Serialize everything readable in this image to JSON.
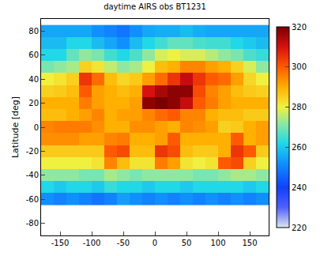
{
  "chart_data": {
    "type": "heatmap",
    "title": "daytime AIRS obs BT1231",
    "y_label": "Latitude [deg]",
    "x": [
      -170,
      -150,
      -130,
      -110,
      -90,
      -70,
      -50,
      -30,
      -10,
      10,
      30,
      50,
      70,
      90,
      110,
      130,
      150,
      170
    ],
    "y": [
      -60,
      -50,
      -40,
      -30,
      -20,
      -10,
      0,
      10,
      20,
      30,
      40,
      50,
      60,
      70,
      80
    ],
    "z": [
      [
        252,
        250,
        252,
        250,
        248,
        250,
        254,
        252,
        250,
        252,
        250,
        252,
        250,
        252,
        250,
        252,
        250,
        252
      ],
      [
        262,
        260,
        262,
        262,
        260,
        264,
        262,
        262,
        260,
        262,
        262,
        260,
        262,
        262,
        262,
        262,
        260,
        262
      ],
      [
        272,
        272,
        272,
        270,
        270,
        274,
        272,
        270,
        272,
        272,
        272,
        272,
        270,
        270,
        272,
        274,
        274,
        272
      ],
      [
        280,
        280,
        280,
        280,
        282,
        295,
        288,
        282,
        282,
        296,
        292,
        282,
        280,
        282,
        300,
        302,
        285,
        280
      ],
      [
        286,
        286,
        286,
        286,
        286,
        300,
        302,
        288,
        288,
        305,
        302,
        288,
        286,
        286,
        290,
        305,
        300,
        286
      ],
      [
        294,
        294,
        294,
        292,
        292,
        295,
        296,
        290,
        290,
        292,
        300,
        290,
        290,
        290,
        290,
        300,
        290,
        292
      ],
      [
        295,
        296,
        296,
        296,
        294,
        290,
        290,
        294,
        294,
        292,
        290,
        295,
        294,
        292,
        285,
        286,
        290,
        292
      ],
      [
        288,
        288,
        290,
        292,
        295,
        290,
        292,
        292,
        295,
        298,
        300,
        295,
        295,
        290,
        288,
        288,
        286,
        286
      ],
      [
        290,
        290,
        290,
        296,
        292,
        290,
        290,
        292,
        318,
        320,
        318,
        312,
        300,
        296,
        292,
        290,
        290,
        290
      ],
      [
        285,
        286,
        288,
        300,
        292,
        290,
        288,
        290,
        310,
        315,
        318,
        318,
        302,
        295,
        292,
        288,
        286,
        285
      ],
      [
        280,
        282,
        285,
        305,
        298,
        288,
        284,
        286,
        292,
        298,
        305,
        312,
        305,
        300,
        298,
        292,
        284,
        280
      ],
      [
        270,
        272,
        274,
        285,
        282,
        276,
        272,
        274,
        280,
        288,
        290,
        295,
        295,
        292,
        290,
        285,
        278,
        272
      ],
      [
        262,
        262,
        268,
        272,
        270,
        265,
        262,
        266,
        272,
        278,
        280,
        278,
        278,
        275,
        272,
        270,
        266,
        264
      ],
      [
        258,
        258,
        262,
        262,
        258,
        255,
        252,
        258,
        262,
        265,
        268,
        268,
        266,
        265,
        265,
        262,
        260,
        258
      ],
      [
        255,
        255,
        255,
        255,
        252,
        250,
        248,
        252,
        255,
        256,
        256,
        258,
        256,
        255,
        255,
        255,
        255,
        255
      ]
    ],
    "xlim": [
      -180,
      180
    ],
    "xticks": [
      -150,
      -100,
      -50,
      0,
      50,
      100,
      150
    ],
    "ylim": [
      -90,
      90
    ],
    "yticks": [
      -80,
      -60,
      -40,
      -20,
      0,
      20,
      40,
      60,
      80
    ],
    "zlim": [
      220,
      320
    ],
    "zticks": [
      220,
      240,
      260,
      280,
      300,
      320
    ]
  }
}
